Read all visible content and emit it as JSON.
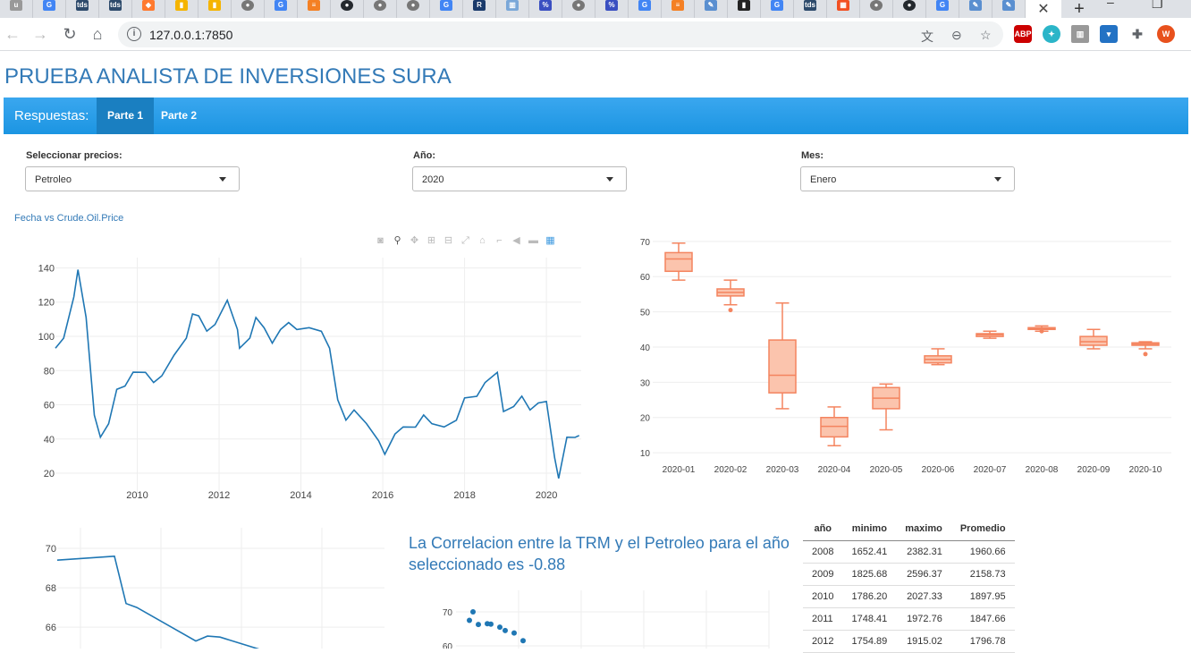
{
  "browser": {
    "url": "127.0.0.1:7850",
    "tab_close": "✕",
    "new_tab": "+"
  },
  "page": {
    "title": "PRUEBA ANALISTA DE INVERSIONES SURA"
  },
  "navbar": {
    "brand": "Respuestas:",
    "tabs": [
      "Parte 1",
      "Parte 2"
    ],
    "active_tab": "Parte 1"
  },
  "controls": {
    "precio": {
      "label": "Seleccionar precios:",
      "value": "Petroleo"
    },
    "anio": {
      "label": "Año:",
      "value": "2020"
    },
    "mes": {
      "label": "Mes:",
      "value": "Enero"
    }
  },
  "colors": {
    "line": "#1f77b4",
    "box": "#f4845f",
    "box_fill": "#fbc4ad",
    "accent": "#337ab7",
    "navbar": "#2a9fe8"
  },
  "line_chart_title": "Fecha vs Crude.Oil.Price",
  "correlation_text": "La Correlacion entre la TRM y el Petroleo para el año seleccionado es -0.88",
  "chart_data": [
    {
      "type": "line",
      "title": "Fecha vs Crude.Oil.Price",
      "xlabel": "",
      "ylabel": "",
      "x_ticks": [
        "2010",
        "2012",
        "2014",
        "2016",
        "2018",
        "2020"
      ],
      "y_ticks": [
        20,
        40,
        60,
        80,
        100,
        120,
        140
      ],
      "xlim": [
        2008.0,
        2020.85
      ],
      "ylim": [
        8,
        146
      ],
      "x": [
        2008.0,
        2008.2,
        2008.45,
        2008.55,
        2008.75,
        2008.95,
        2009.1,
        2009.3,
        2009.5,
        2009.7,
        2009.9,
        2010.2,
        2010.4,
        2010.6,
        2010.9,
        2011.2,
        2011.35,
        2011.5,
        2011.7,
        2011.9,
        2012.2,
        2012.45,
        2012.5,
        2012.75,
        2012.9,
        2013.1,
        2013.3,
        2013.5,
        2013.7,
        2013.9,
        2014.2,
        2014.5,
        2014.7,
        2014.9,
        2015.1,
        2015.3,
        2015.6,
        2015.9,
        2016.05,
        2016.3,
        2016.5,
        2016.8,
        2017.0,
        2017.2,
        2017.5,
        2017.8,
        2018.0,
        2018.3,
        2018.5,
        2018.8,
        2018.95,
        2019.2,
        2019.4,
        2019.6,
        2019.8,
        2020.0,
        2020.2,
        2020.3,
        2020.5,
        2020.7,
        2020.8
      ],
      "y": [
        92,
        100,
        122,
        140,
        110,
        55,
        40,
        50,
        68,
        72,
        78,
        80,
        72,
        78,
        88,
        100,
        112,
        113,
        102,
        108,
        120,
        105,
        92,
        100,
        110,
        106,
        95,
        105,
        107,
        105,
        104,
        104,
        92,
        64,
        50,
        58,
        48,
        40,
        30,
        44,
        46,
        48,
        53,
        50,
        46,
        52,
        63,
        66,
        72,
        80,
        55,
        60,
        64,
        58,
        60,
        63,
        28,
        18,
        40,
        42,
        41
      ]
    },
    {
      "type": "box",
      "title": "",
      "categories": [
        "2020-01",
        "2020-02",
        "2020-03",
        "2020-04",
        "2020-05",
        "2020-06",
        "2020-07",
        "2020-08",
        "2020-09",
        "2020-10"
      ],
      "ylim": [
        8,
        73
      ],
      "y_ticks": [
        10,
        20,
        30,
        40,
        50,
        60,
        70
      ],
      "boxes": [
        {
          "min": 59,
          "q1": 61.5,
          "median": 65,
          "q3": 66.8,
          "max": 69.5,
          "outliers": []
        },
        {
          "min": 52,
          "q1": 54.5,
          "median": 55.5,
          "q3": 56.5,
          "max": 59,
          "outliers": [
            50.5
          ]
        },
        {
          "min": 22.5,
          "q1": 27,
          "median": 32,
          "q3": 42,
          "max": 52.5,
          "outliers": []
        },
        {
          "min": 12,
          "q1": 14.5,
          "median": 17.5,
          "q3": 20,
          "max": 23,
          "outliers": []
        },
        {
          "min": 16.5,
          "q1": 22.5,
          "median": 25.5,
          "q3": 28.5,
          "max": 29.5,
          "outliers": []
        },
        {
          "min": 35,
          "q1": 35.5,
          "median": 36.5,
          "q3": 37.5,
          "max": 39.5,
          "outliers": []
        },
        {
          "min": 42.5,
          "q1": 43,
          "median": 43.5,
          "q3": 43.8,
          "max": 44.5,
          "outliers": []
        },
        {
          "min": 44.5,
          "q1": 45,
          "median": 45.2,
          "q3": 45.5,
          "max": 46,
          "outliers": [
            44.5
          ]
        },
        {
          "min": 39.5,
          "q1": 40.5,
          "median": 41.5,
          "q3": 43,
          "max": 45,
          "outliers": []
        },
        {
          "min": 39.5,
          "q1": 40.5,
          "median": 40.8,
          "q3": 41.2,
          "max": 41.5,
          "outliers": [
            38
          ]
        }
      ]
    },
    {
      "type": "line",
      "title": "",
      "y_ticks": [
        66,
        68,
        70
      ],
      "ylim": [
        64.6,
        70.5
      ],
      "x": [
        0,
        1,
        2,
        3,
        4,
        5,
        6,
        7,
        8,
        9,
        10
      ],
      "y": [
        69.4,
        69.6,
        67.2,
        67.0,
        66.2,
        65.9,
        65.6,
        65.4,
        65.55,
        65.5,
        64.9
      ]
    },
    {
      "type": "scatter",
      "title": "",
      "y_ticks": [
        60,
        70
      ],
      "ylim": [
        58,
        72
      ],
      "x": [
        0.1,
        0.12,
        0.15,
        0.2,
        0.22,
        0.27,
        0.3,
        0.35,
        0.4
      ],
      "y": [
        67.5,
        70,
        66.3,
        66.5,
        66.4,
        65.5,
        64.5,
        63.8,
        61.5
      ]
    }
  ],
  "table": {
    "headers": [
      "año",
      "minimo",
      "maximo",
      "Promedio"
    ],
    "rows": [
      [
        "2008",
        "1652.41",
        "2382.31",
        "1960.66"
      ],
      [
        "2009",
        "1825.68",
        "2596.37",
        "2158.73"
      ],
      [
        "2010",
        "1786.20",
        "2027.33",
        "1897.95"
      ],
      [
        "2011",
        "1748.41",
        "1972.76",
        "1847.66"
      ],
      [
        "2012",
        "1754.89",
        "1915.02",
        "1796.78"
      ]
    ]
  }
}
